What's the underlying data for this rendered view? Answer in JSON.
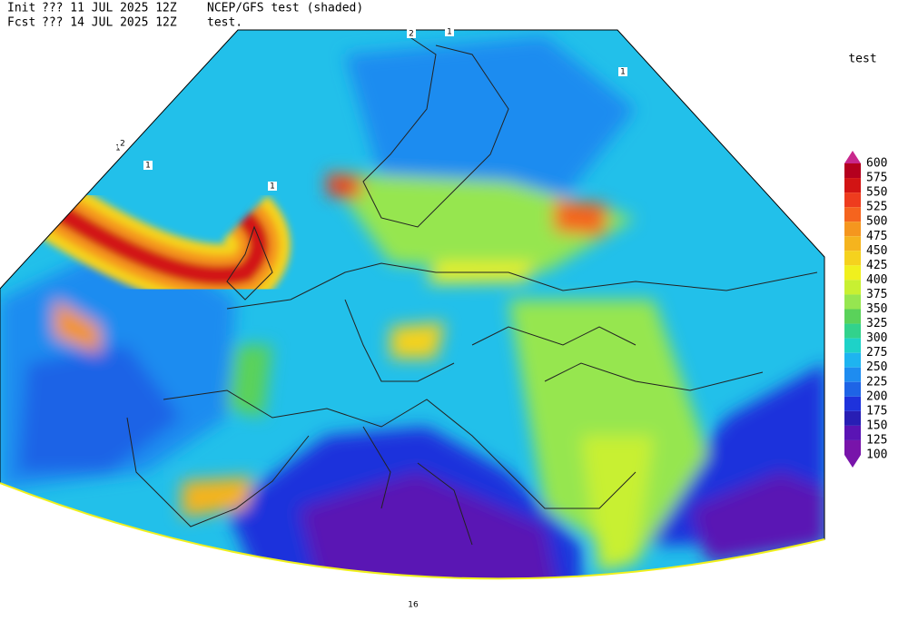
{
  "header": {
    "init_label": "Init",
    "init_time": "??? 11 JUL 2025 12Z",
    "model": "NCEP/GFS test (shaded)",
    "fcst_label": "Fcst",
    "fcst_time": "??? 14 JUL 2025 12Z",
    "field": "test."
  },
  "legend": {
    "title": "test",
    "levels": [
      600,
      575,
      550,
      525,
      500,
      475,
      450,
      425,
      400,
      375,
      350,
      325,
      300,
      275,
      250,
      225,
      200,
      175,
      150,
      125,
      100
    ],
    "colors": [
      "#c8288c",
      "#b4001e",
      "#d21414",
      "#ee3c1e",
      "#f5641e",
      "#f5961e",
      "#f5b41e",
      "#f5d21e",
      "#f0f01e",
      "#c8f032",
      "#96e650",
      "#5ad25a",
      "#32d28c",
      "#1ed2c8",
      "#1eb4f0",
      "#1e8cf0",
      "#1e64e6",
      "#1e32dc",
      "#281eb4",
      "#5a14b4",
      "#7814aa",
      "#7814aa"
    ]
  },
  "contour_labels": [
    "2",
    "1",
    "1",
    "1",
    "2",
    "1",
    "1",
    "16"
  ]
}
